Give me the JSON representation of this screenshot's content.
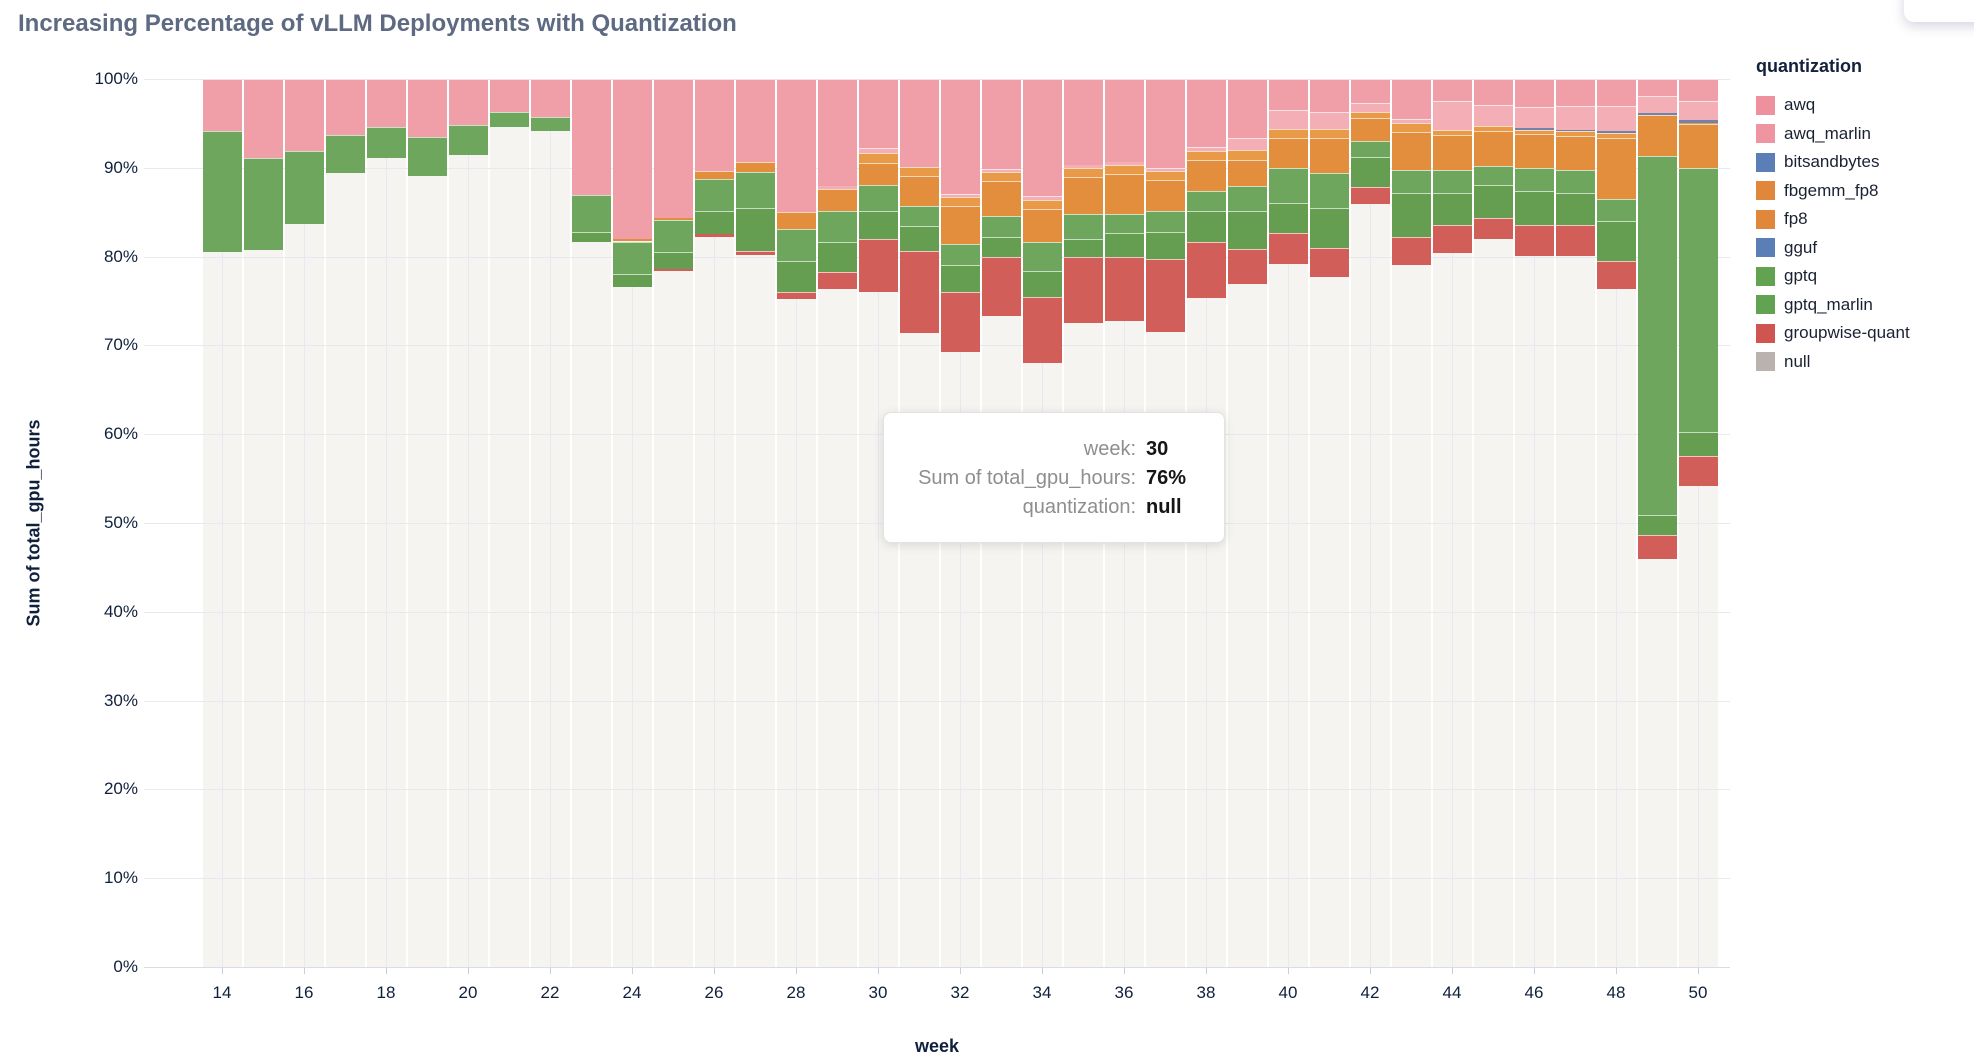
{
  "title": "Increasing Percentage of vLLM Deployments with Quantization",
  "chart_data": {
    "type": "bar",
    "subtype": "normalized-stacked",
    "title": "Increasing Percentage of vLLM Deployments with Quantization",
    "xlabel": "week",
    "ylabel": "Sum of total_gpu_hours",
    "ylim": [
      0,
      100
    ],
    "grid": true,
    "legend_position": "right",
    "x": [
      14,
      15,
      16,
      17,
      18,
      19,
      20,
      21,
      22,
      23,
      24,
      25,
      26,
      27,
      28,
      29,
      30,
      31,
      32,
      33,
      34,
      35,
      36,
      37,
      38,
      39,
      40,
      41,
      42,
      43,
      44,
      45,
      46,
      47,
      48,
      49,
      50
    ],
    "x_ticks": [
      14,
      16,
      18,
      20,
      22,
      24,
      26,
      28,
      30,
      32,
      34,
      36,
      38,
      40,
      42,
      44,
      46,
      48,
      50
    ],
    "y_ticks": [
      "0%",
      "10%",
      "20%",
      "30%",
      "40%",
      "50%",
      "60%",
      "70%",
      "80%",
      "90%",
      "100%"
    ],
    "stack_order_bottom_to_top": [
      "null",
      "groupwise-quant",
      "gptq_marlin",
      "gptq",
      "gguf",
      "fp8",
      "fbgemm_fp8",
      "bitsandbytes",
      "awq_marlin",
      "awq"
    ],
    "series": [
      {
        "name": "null",
        "color": "#f6f4f0",
        "values": [
          80.5,
          80.7,
          83.7,
          89.4,
          91.1,
          89.1,
          91.4,
          94.6,
          94.1,
          81.6,
          76.6,
          78.4,
          82.2,
          80.2,
          75.2,
          76.4,
          76.0,
          71.4,
          69.3,
          73.3,
          68.0,
          72.5,
          72.7,
          71.5,
          75.3,
          76.9,
          79.2,
          77.7,
          85.9,
          79.0,
          80.4,
          82.0,
          80.1,
          80.1,
          76.4,
          45.9,
          54.2
        ]
      },
      {
        "name": "groupwise-quant",
        "color": "#d15e58",
        "values": [
          0,
          0,
          0,
          0,
          0,
          0,
          0,
          0,
          0,
          0,
          0,
          0.2,
          0.3,
          0.4,
          0.8,
          1.9,
          6.0,
          9.2,
          6.7,
          6.6,
          7.5,
          7.4,
          7.2,
          8.2,
          6.3,
          3.9,
          3.5,
          3.3,
          1.9,
          3.2,
          3.2,
          2.4,
          3.5,
          3.5,
          3.1,
          2.8,
          3.4
        ]
      },
      {
        "name": "gptq_marlin",
        "color": "#669e51",
        "values": [
          0,
          0,
          0,
          0,
          0,
          0,
          0,
          0,
          0,
          1.2,
          1.4,
          1.9,
          2.6,
          4.9,
          3.5,
          3.3,
          3.1,
          2.9,
          3.0,
          2.3,
          2.9,
          2.1,
          2.8,
          3.1,
          3.5,
          4.3,
          3.3,
          4.5,
          3.4,
          5.0,
          3.6,
          3.7,
          3.8,
          3.6,
          4.5,
          2.2,
          2.6
        ]
      },
      {
        "name": "gptq",
        "color": "#6da65c",
        "values": [
          13.6,
          10.4,
          8.2,
          4.3,
          3.5,
          4.4,
          3.4,
          1.7,
          1.6,
          4.1,
          3.7,
          3.6,
          3.6,
          4.0,
          3.6,
          3.5,
          3.0,
          2.2,
          2.4,
          2.4,
          3.2,
          2.8,
          2.1,
          2.3,
          2.3,
          2.8,
          4.0,
          3.9,
          1.8,
          2.6,
          2.6,
          2.1,
          2.6,
          2.6,
          2.5,
          40.4,
          29.8
        ]
      },
      {
        "name": "gguf",
        "color": "#5d7fb2",
        "values": [
          0,
          0,
          0,
          0,
          0,
          0,
          0,
          0,
          0,
          0,
          0,
          0,
          0,
          0,
          0,
          0,
          0,
          0,
          0,
          0,
          0,
          0,
          0,
          0,
          0,
          0,
          0,
          0,
          0,
          0,
          0,
          0,
          0,
          0,
          0,
          0,
          0
        ]
      },
      {
        "name": "fp8",
        "color": "#e38e3d",
        "values": [
          0,
          0,
          0,
          0,
          0,
          0,
          0,
          0,
          0,
          0,
          0.3,
          0.3,
          0.9,
          1.2,
          1.9,
          2.5,
          2.4,
          3.4,
          4.3,
          3.9,
          3.8,
          4.2,
          4.5,
          3.5,
          3.5,
          3.0,
          3.4,
          4.0,
          2.6,
          4.2,
          3.9,
          4.0,
          3.8,
          3.8,
          6.9,
          4.6,
          4.9
        ]
      },
      {
        "name": "fbgemm_fp8",
        "color": "#e89a48",
        "values": [
          0,
          0,
          0,
          0,
          0,
          0,
          0,
          0,
          0,
          0,
          0,
          0,
          0,
          0,
          0,
          0,
          1.2,
          1.0,
          1.0,
          1.0,
          1.0,
          1.0,
          1.0,
          1.0,
          1.0,
          1.1,
          1.0,
          1.0,
          0.7,
          1.0,
          0.6,
          0.5,
          0.5,
          0.5,
          0.5,
          0,
          0.2
        ]
      },
      {
        "name": "bitsandbytes",
        "color": "#6e84ad",
        "values": [
          0,
          0,
          0,
          0,
          0,
          0,
          0,
          0,
          0,
          0,
          0,
          0,
          0,
          0,
          0,
          0,
          0,
          0,
          0,
          0,
          0,
          0,
          0,
          0,
          0,
          0,
          0,
          0,
          0,
          0,
          0,
          0,
          0.2,
          0.2,
          0.2,
          0.3,
          0.3
        ]
      },
      {
        "name": "awq_marlin",
        "color": "#f3aeb6",
        "values": [
          0,
          0,
          0,
          0,
          0,
          0,
          0,
          0,
          0,
          0,
          0,
          0,
          0,
          0,
          0,
          0.3,
          0.5,
          0,
          0.4,
          0.4,
          0.4,
          0.3,
          0.3,
          0.4,
          0.4,
          1.3,
          2.1,
          1.9,
          1.0,
          0.5,
          3.2,
          2.4,
          2.4,
          2.7,
          2.9,
          1.9,
          2.1
        ]
      },
      {
        "name": "awq",
        "color": "#f09fa9",
        "values": [
          5.9,
          8.9,
          8.1,
          6.3,
          5.4,
          6.5,
          5.2,
          3.7,
          4.3,
          13.1,
          18.0,
          15.6,
          10.4,
          9.3,
          15.0,
          12.1,
          7.8,
          9.9,
          12.9,
          10.1,
          13.2,
          9.7,
          9.4,
          10.0,
          7.7,
          6.7,
          3.5,
          3.7,
          2.7,
          4.5,
          2.5,
          2.9,
          3.1,
          3.0,
          3.0,
          1.9,
          2.5
        ]
      }
    ]
  },
  "legend": {
    "title": "quantization",
    "items": [
      {
        "label": "awq",
        "color": "#ee909d"
      },
      {
        "label": "awq_marlin",
        "color": "#ee95a1"
      },
      {
        "label": "bitsandbytes",
        "color": "#5a7eb5"
      },
      {
        "label": "fbgemm_fp8",
        "color": "#e0873c"
      },
      {
        "label": "fp8",
        "color": "#e0873c"
      },
      {
        "label": "gguf",
        "color": "#5a7eb5"
      },
      {
        "label": "gptq",
        "color": "#61a351"
      },
      {
        "label": "gptq_marlin",
        "color": "#61a351"
      },
      {
        "label": "groupwise-quant",
        "color": "#cf5551"
      },
      {
        "label": "null",
        "color": "#b9b2af"
      }
    ]
  },
  "tooltip": {
    "rows": [
      {
        "label": "week:",
        "value": "30"
      },
      {
        "label": "Sum of total_gpu_hours:",
        "value": "76%"
      },
      {
        "label": "quantization:",
        "value": "null"
      }
    ]
  }
}
